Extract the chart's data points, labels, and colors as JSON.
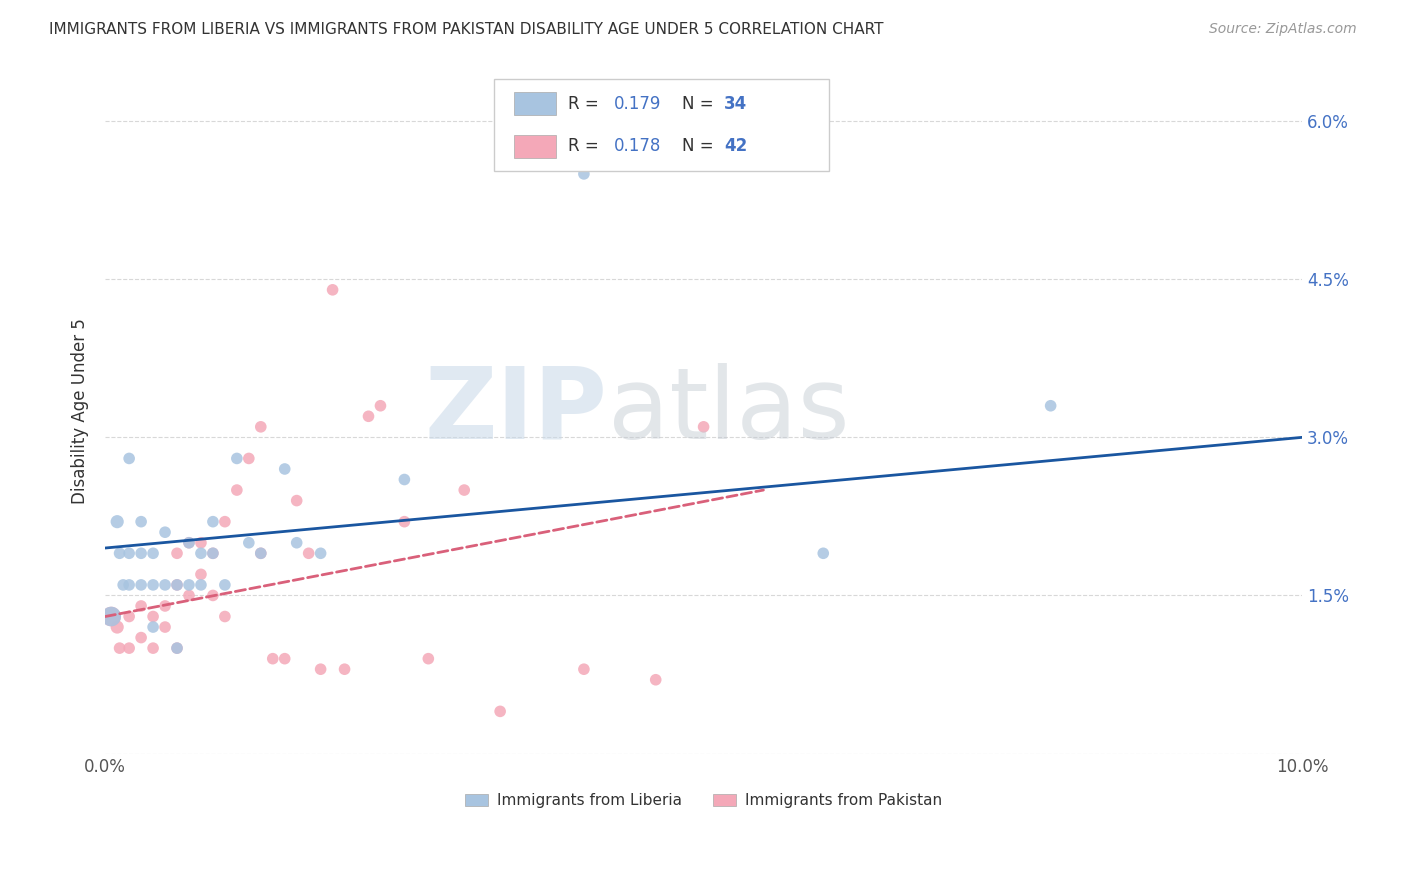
{
  "title": "IMMIGRANTS FROM LIBERIA VS IMMIGRANTS FROM PAKISTAN DISABILITY AGE UNDER 5 CORRELATION CHART",
  "source": "Source: ZipAtlas.com",
  "ylabel": "Disability Age Under 5",
  "xlim": [
    0.0,
    0.1
  ],
  "ylim": [
    0.0,
    0.065
  ],
  "xtick_pos": [
    0.0,
    0.02,
    0.04,
    0.06,
    0.08,
    0.1
  ],
  "xtick_labels": [
    "0.0%",
    "",
    "",
    "",
    "",
    "10.0%"
  ],
  "ytick_pos": [
    0.0,
    0.015,
    0.03,
    0.045,
    0.06
  ],
  "ytick_labels": [
    "",
    "1.5%",
    "3.0%",
    "4.5%",
    "6.0%"
  ],
  "liberia_R": "0.179",
  "liberia_N": "34",
  "pakistan_R": "0.178",
  "pakistan_N": "42",
  "liberia_color": "#a8c4e0",
  "pakistan_color": "#f4a8b8",
  "liberia_line_color": "#1a56a0",
  "pakistan_line_color": "#d9607a",
  "grid_color": "#d8d8d8",
  "liberia_x": [
    0.0005,
    0.001,
    0.0012,
    0.0015,
    0.002,
    0.002,
    0.002,
    0.003,
    0.003,
    0.003,
    0.004,
    0.004,
    0.004,
    0.005,
    0.005,
    0.006,
    0.006,
    0.007,
    0.007,
    0.008,
    0.008,
    0.009,
    0.009,
    0.01,
    0.011,
    0.012,
    0.013,
    0.015,
    0.016,
    0.018,
    0.025,
    0.04,
    0.06,
    0.079
  ],
  "liberia_y": [
    0.013,
    0.022,
    0.019,
    0.016,
    0.028,
    0.019,
    0.016,
    0.022,
    0.019,
    0.016,
    0.019,
    0.016,
    0.012,
    0.021,
    0.016,
    0.016,
    0.01,
    0.02,
    0.016,
    0.019,
    0.016,
    0.022,
    0.019,
    0.016,
    0.028,
    0.02,
    0.019,
    0.027,
    0.02,
    0.019,
    0.026,
    0.055,
    0.019,
    0.033
  ],
  "liberia_sizes": [
    200,
    90,
    70,
    70,
    70,
    70,
    70,
    70,
    70,
    70,
    70,
    70,
    70,
    70,
    70,
    70,
    70,
    70,
    70,
    70,
    70,
    70,
    70,
    70,
    70,
    70,
    70,
    70,
    70,
    70,
    70,
    70,
    70,
    70
  ],
  "pakistan_x": [
    0.0005,
    0.001,
    0.0012,
    0.002,
    0.002,
    0.003,
    0.003,
    0.004,
    0.004,
    0.005,
    0.005,
    0.006,
    0.006,
    0.006,
    0.007,
    0.007,
    0.008,
    0.008,
    0.009,
    0.009,
    0.01,
    0.01,
    0.011,
    0.012,
    0.013,
    0.013,
    0.014,
    0.015,
    0.016,
    0.017,
    0.018,
    0.019,
    0.02,
    0.022,
    0.023,
    0.025,
    0.027,
    0.03,
    0.033,
    0.04,
    0.046,
    0.05
  ],
  "pakistan_y": [
    0.013,
    0.012,
    0.01,
    0.013,
    0.01,
    0.014,
    0.011,
    0.013,
    0.01,
    0.014,
    0.012,
    0.016,
    0.019,
    0.01,
    0.02,
    0.015,
    0.02,
    0.017,
    0.019,
    0.015,
    0.022,
    0.013,
    0.025,
    0.028,
    0.031,
    0.019,
    0.009,
    0.009,
    0.024,
    0.019,
    0.008,
    0.044,
    0.008,
    0.032,
    0.033,
    0.022,
    0.009,
    0.025,
    0.004,
    0.008,
    0.007,
    0.031
  ],
  "pakistan_sizes": [
    200,
    90,
    70,
    70,
    70,
    70,
    70,
    70,
    70,
    70,
    70,
    70,
    70,
    70,
    70,
    70,
    70,
    70,
    70,
    70,
    70,
    70,
    70,
    70,
    70,
    70,
    70,
    70,
    70,
    70,
    70,
    70,
    70,
    70,
    70,
    70,
    70,
    70,
    70,
    70,
    70,
    70
  ],
  "liberia_line_x": [
    0.0,
    0.1
  ],
  "liberia_line_y": [
    0.0195,
    0.03
  ],
  "pakistan_line_x": [
    0.0,
    0.055
  ],
  "pakistan_line_y": [
    0.013,
    0.025
  ]
}
